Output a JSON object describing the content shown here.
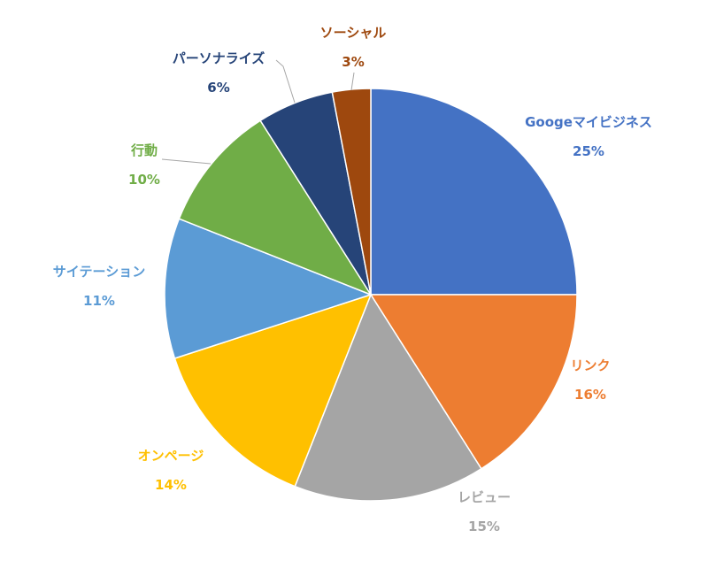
{
  "chart_data": {
    "type": "pie",
    "title": "",
    "start_angle_deg": 0,
    "direction": "clockwise",
    "slices": [
      {
        "label": "Googeマイビジネス",
        "percent_label": "25%",
        "value": 25,
        "color": "#4472C4",
        "label_color": "#4472C4"
      },
      {
        "label": "リンク",
        "percent_label": "16%",
        "value": 16,
        "color": "#ED7D31",
        "label_color": "#ED7D31"
      },
      {
        "label": "レビュー",
        "percent_label": "15%",
        "value": 15,
        "color": "#A5A5A5",
        "label_color": "#A5A5A5"
      },
      {
        "label": "オンページ",
        "percent_label": "14%",
        "value": 14,
        "color": "#FFC000",
        "label_color": "#FFC000"
      },
      {
        "label": "サイテーション",
        "percent_label": "11%",
        "value": 11,
        "color": "#5B9BD5",
        "label_color": "#5B9BD5"
      },
      {
        "label": "行動",
        "percent_label": "10%",
        "value": 10,
        "color": "#70AD47",
        "label_color": "#70AD47"
      },
      {
        "label": "パーソナライズ",
        "percent_label": "6%",
        "value": 6,
        "color": "#264478",
        "label_color": "#264478"
      },
      {
        "label": "ソーシャル",
        "percent_label": "3%",
        "value": 3,
        "color": "#9E480E",
        "label_color": "#9E480E"
      }
    ]
  }
}
